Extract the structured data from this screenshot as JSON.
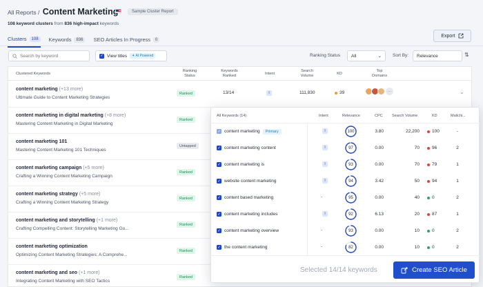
{
  "header": {
    "breadcrumb_parent": "All Reports",
    "separator": "/",
    "title": "Content Marketing",
    "badge": "Sample Cluster Report",
    "subline": {
      "clusters": "108 keyword clusters",
      "from": "from",
      "keywords": "836 high-impact",
      "suffix": "keywords"
    },
    "export_label": "Export"
  },
  "tabs": [
    {
      "label": "Clusters",
      "count": "108"
    },
    {
      "label": "Keywords",
      "count": "836"
    },
    {
      "label": "SEO Articles In Progress",
      "count": "0"
    }
  ],
  "toolbar": {
    "search_placeholder": "Search by keyword",
    "view_titles_label": "View titles",
    "ai_badge": "AI Powered",
    "ranking_status_label": "Ranking Status",
    "ranking_status_value": "All",
    "sort_by_label": "Sort By:",
    "sort_by_value": "Relevance"
  },
  "table": {
    "headers": {
      "clustered": "Clustered Keywords",
      "ranking": "Ranking\nStatus",
      "kw_ranked": "Keywords\nRanked",
      "intent": "Intent",
      "volume": "Search\nVolume",
      "kd": "KD",
      "domains": "Top\nDomains"
    },
    "rows": [
      {
        "keyword": "content marketing",
        "more": "(+13 more)",
        "title": "Ultimate Guide to Content Marketing Strategies",
        "status": "Ranked",
        "ranked": "13/14",
        "intent": "I",
        "volume": "111,830",
        "kd": "39",
        "dom_more": "···"
      },
      {
        "keyword": "content marketing in digital marketing",
        "more": "(+8 more)",
        "title": "Mastering Content Marketing in Digital Marketing",
        "status": "Ranked"
      },
      {
        "keyword": "content marketing 101",
        "more": "",
        "title": "Mastering Content Marketing 101 Techniques",
        "status": "Untapped"
      },
      {
        "keyword": "content marketing campaign",
        "more": "(+5 more)",
        "title": "Crafting a Winning Content Marketing Campaign",
        "status": "Ranked"
      },
      {
        "keyword": "content marketing strategy",
        "more": "(+5 more)",
        "title": "Crafting a Winning Content Marketing Strategy",
        "status": "Ranked"
      },
      {
        "keyword": "content marketing and storytelling",
        "more": "(+1 more)",
        "title": "Crafting Compelling Content: Storytelling Marketing Gu...",
        "status": "Ranked"
      },
      {
        "keyword": "content marketing optimization",
        "more": "",
        "title": "Optimizing Content Marketing Strategies: A Comprehe...",
        "status": "Ranked"
      },
      {
        "keyword": "content marketing and seo",
        "more": "(+1 more)",
        "title": "Integrating Content Marketing with SEO Tactics",
        "status": "Ranked"
      }
    ]
  },
  "popup": {
    "headers": {
      "all": "All Keywords (14)",
      "intent": "Intent",
      "relevance": "Relevance",
      "cpc": "CPC",
      "volume": "Search Volume",
      "kd": "KD",
      "mal": "Malichi..."
    },
    "rows": [
      {
        "keyword": "content marketing",
        "primary": "Primary",
        "intent": "I",
        "relevance": "100",
        "cpc": "3.80",
        "volume": "22,200",
        "kd": "100",
        "kd_color": "#d64545",
        "mal": "-"
      },
      {
        "keyword": "content marketing content",
        "intent": "I",
        "relevance": "97",
        "cpc": "0.00",
        "volume": "70",
        "kd": "96",
        "kd_color": "#d64545",
        "mal": "2"
      },
      {
        "keyword": "content marketing is",
        "intent": "I",
        "relevance": "93",
        "cpc": "0.00",
        "volume": "70",
        "kd": "79",
        "kd_color": "#d64545",
        "mal": "1"
      },
      {
        "keyword": "website content marketing",
        "intent": "I",
        "relevance": "94",
        "cpc": "3.42",
        "volume": "50",
        "kd": "94",
        "kd_color": "#d64545",
        "mal": "1"
      },
      {
        "keyword": "content based marketing",
        "intent": "-",
        "relevance": "95",
        "cpc": "0.00",
        "volume": "40",
        "kd": "0",
        "kd_color": "#2aa863",
        "mal": "2"
      },
      {
        "keyword": "content marketing includes",
        "intent": "I",
        "relevance": "92",
        "cpc": "6.13",
        "volume": "20",
        "kd": "87",
        "kd_color": "#d64545",
        "mal": "1"
      },
      {
        "keyword": "content marketing overview",
        "intent": "-",
        "relevance": "93",
        "cpc": "0.00",
        "volume": "10",
        "kd": "0",
        "kd_color": "#2aa863",
        "mal": "2"
      },
      {
        "keyword": "the content marketing",
        "intent": "-",
        "relevance": "82",
        "cpc": "0.00",
        "volume": "10",
        "kd": "0",
        "kd_color": "#2aa863",
        "mal": "2"
      }
    ],
    "selected_text": "Selected 14/14 keywords",
    "create_label": "Create SEO Article"
  },
  "colors": {
    "accent": "#2046c5",
    "kd_medium": "#f39c2b",
    "relevance_ring": "#2046c5"
  }
}
